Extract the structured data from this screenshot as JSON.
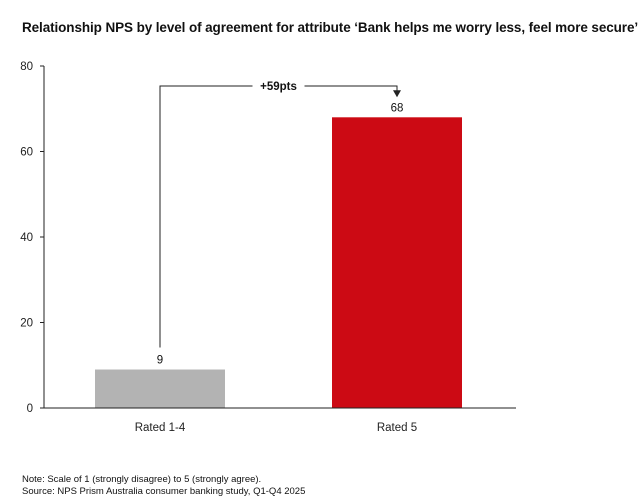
{
  "title": "Relationship NPS by level of agreement for attribute ‘Bank helps me worry less, feel more secure’",
  "chart_data": {
    "type": "bar",
    "title": "Relationship NPS by level of agreement for attribute ‘Bank helps me worry less, feel more secure’",
    "categories": [
      "Rated 1-4",
      "Rated 5"
    ],
    "values": [
      9,
      68
    ],
    "value_labels": [
      "9",
      "68"
    ],
    "ylim": [
      0,
      80
    ],
    "yticks": [
      0,
      20,
      40,
      60,
      80
    ],
    "ytick_labels": [
      "0",
      "20",
      "40",
      "60",
      "80"
    ],
    "xlabel": "",
    "ylabel": "",
    "grid": false,
    "colors": [
      "#b3b3b3",
      "#cc0a14"
    ],
    "annotation": {
      "text": "+59pts",
      "from": "Rated 1-4",
      "to": "Rated 5"
    }
  },
  "notes": {
    "note": "Note: Scale of 1 (strongly disagree) to 5 (strongly agree).",
    "source": "Source: NPS Prism Australia consumer banking study, Q1-Q4 2025"
  }
}
